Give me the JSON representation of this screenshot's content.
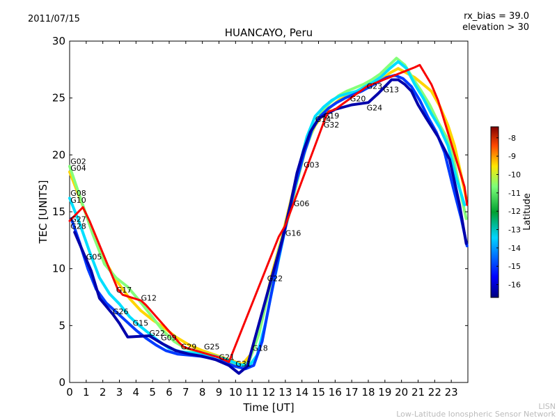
{
  "header": {
    "date": "2011/07/15",
    "rx_bias": "rx_bias = 39.0",
    "elevation": "elevation > 30"
  },
  "credit": {
    "line1": "LISN",
    "line2": "Low-Latitude Ionospheric Sensor Network"
  },
  "chart_data": {
    "type": "scatter",
    "title": "HUANCAYO, Peru",
    "xlabel": "Time [UT]",
    "ylabel": "TEC [UNITS]",
    "xlim": [
      0,
      24
    ],
    "ylim": [
      0,
      30
    ],
    "x_ticks": [
      0,
      1,
      2,
      3,
      4,
      5,
      6,
      7,
      8,
      9,
      10,
      11,
      12,
      13,
      14,
      15,
      16,
      17,
      18,
      19,
      20,
      21,
      22,
      23
    ],
    "y_ticks": [
      0,
      5,
      10,
      15,
      20,
      25,
      30
    ],
    "colorbar": {
      "label": "Latitude",
      "range": [
        -16.7,
        -7.4
      ],
      "ticks": [
        -8,
        -9,
        -10,
        -11,
        -12,
        -13,
        -14,
        -15,
        -16
      ]
    },
    "satellite_labels": [
      {
        "name": "G02",
        "t": 0.05,
        "tec": 19.2
      },
      {
        "name": "G04",
        "t": 0.05,
        "tec": 18.6
      },
      {
        "name": "G08",
        "t": 0.05,
        "tec": 16.4
      },
      {
        "name": "G10",
        "t": 0.05,
        "tec": 15.8
      },
      {
        "name": "G27",
        "t": 0.05,
        "tec": 14.1
      },
      {
        "name": "G28",
        "t": 0.05,
        "tec": 13.5
      },
      {
        "name": "G05",
        "t": 1.0,
        "tec": 10.8
      },
      {
        "name": "G17",
        "t": 2.8,
        "tec": 7.9
      },
      {
        "name": "G12",
        "t": 4.3,
        "tec": 7.2
      },
      {
        "name": "G26",
        "t": 2.6,
        "tec": 6.0
      },
      {
        "name": "G15",
        "t": 3.8,
        "tec": 5.0
      },
      {
        "name": "G22",
        "t": 4.8,
        "tec": 4.1
      },
      {
        "name": "G09",
        "t": 5.5,
        "tec": 3.7
      },
      {
        "name": "G29",
        "t": 6.7,
        "tec": 2.9
      },
      {
        "name": "G25",
        "t": 8.1,
        "tec": 2.9
      },
      {
        "name": "G21",
        "t": 9.0,
        "tec": 2.0
      },
      {
        "name": "G31",
        "t": 10.0,
        "tec": 1.4
      },
      {
        "name": "G18",
        "t": 11.0,
        "tec": 2.8
      },
      {
        "name": "G22",
        "t": 11.9,
        "tec": 8.9
      },
      {
        "name": "G16",
        "t": 13.0,
        "tec": 12.9
      },
      {
        "name": "G06",
        "t": 13.5,
        "tec": 15.5
      },
      {
        "name": "G03",
        "t": 14.1,
        "tec": 18.9
      },
      {
        "name": "G14",
        "t": 14.8,
        "tec": 22.9
      },
      {
        "name": "G19",
        "t": 15.3,
        "tec": 23.2
      },
      {
        "name": "G32",
        "t": 15.3,
        "tec": 22.4
      },
      {
        "name": "G20",
        "t": 16.9,
        "tec": 24.7
      },
      {
        "name": "G24",
        "t": 17.9,
        "tec": 23.9
      },
      {
        "name": "G23",
        "t": 17.9,
        "tec": 25.8
      },
      {
        "name": "G13",
        "t": 18.9,
        "tec": 25.5
      }
    ],
    "series": [
      {
        "lat": -10.5,
        "t": [
          0,
          0.8,
          1.5,
          2.2,
          2.9,
          3.6,
          4.3,
          5.0,
          5.7,
          6.4,
          7.2,
          8.0,
          8.8,
          9.6,
          10.4,
          11.0,
          11.6,
          12.2,
          12.8,
          13.3,
          13.8,
          14.3,
          14.8,
          15.3,
          15.8,
          16.3,
          16.8,
          17.3,
          17.8,
          18.3,
          18.8,
          19.3,
          19.8,
          20.3,
          20.8,
          21.3,
          21.8,
          22.3,
          22.8,
          23.2,
          23.6,
          23.9
        ],
        "tec": [
          18.5,
          15.5,
          12.8,
          10.5,
          8.8,
          7.4,
          6.3,
          5.5,
          4.8,
          4.0,
          3.3,
          2.8,
          2.4,
          2.0,
          1.6,
          2.6,
          5.8,
          9.6,
          12.8,
          15.8,
          18.8,
          21.0,
          22.6,
          23.6,
          24.3,
          24.9,
          25.2,
          25.6,
          25.9,
          26.2,
          26.6,
          27.2,
          27.6,
          27.2,
          26.8,
          26.2,
          25.6,
          24.3,
          22.6,
          20.8,
          18.2,
          16.2
        ]
      },
      {
        "lat": -12.0,
        "t": [
          0,
          0.7,
          1.4,
          2.1,
          2.8,
          3.5,
          4.2,
          4.9,
          5.6,
          6.3,
          7.0,
          7.8,
          8.6,
          9.4,
          10.2,
          10.8,
          11.4,
          12.0,
          12.6,
          13.2,
          13.7,
          14.2,
          14.7,
          15.2,
          15.7,
          16.2,
          16.7,
          17.2,
          17.7,
          18.2,
          18.7,
          19.2,
          19.7,
          20.2,
          20.7,
          21.2,
          21.7,
          22.2,
          22.7,
          23.1,
          23.5,
          23.9
        ],
        "tec": [
          19.0,
          16.0,
          13.0,
          10.4,
          9.2,
          8.4,
          7.2,
          5.9,
          4.6,
          3.6,
          3.0,
          2.7,
          2.4,
          2.0,
          1.4,
          1.8,
          4.2,
          8.0,
          11.6,
          14.6,
          17.6,
          20.4,
          22.4,
          23.8,
          24.6,
          25.2,
          25.6,
          25.9,
          26.2,
          26.6,
          27.1,
          27.8,
          28.5,
          27.9,
          26.7,
          25.6,
          24.4,
          22.9,
          21.6,
          19.9,
          17.1,
          14.4
        ]
      },
      {
        "lat": -13.5,
        "t": [
          0,
          0.6,
          1.2,
          1.8,
          2.4,
          3.0,
          3.6,
          4.2,
          4.8,
          5.4,
          6.0,
          6.7,
          7.4,
          8.1,
          8.8,
          9.5,
          10.2,
          10.8,
          11.3,
          11.8,
          12.3,
          12.8,
          13.3,
          13.8,
          14.3,
          14.8,
          15.3,
          15.8,
          16.3,
          16.8,
          17.3,
          17.8,
          18.3,
          18.8,
          19.3,
          19.8,
          20.3,
          20.8,
          21.3,
          21.8,
          22.3,
          22.8,
          23.3,
          23.8
        ],
        "tec": [
          16.2,
          14.0,
          11.5,
          9.2,
          7.8,
          6.9,
          5.8,
          5.0,
          4.3,
          3.6,
          3.0,
          2.7,
          2.6,
          2.5,
          2.3,
          2.0,
          1.6,
          1.4,
          2.4,
          5.2,
          8.8,
          12.2,
          15.6,
          18.8,
          21.6,
          23.4,
          24.2,
          24.8,
          25.2,
          25.4,
          25.6,
          26.0,
          26.4,
          26.9,
          27.6,
          28.2,
          27.6,
          26.2,
          25.0,
          23.6,
          22.4,
          20.8,
          18.0,
          15.6
        ]
      },
      {
        "lat": -15.0,
        "t": [
          0.1,
          0.6,
          1.1,
          1.6,
          2.2,
          2.8,
          3.4,
          4.0,
          4.6,
          5.2,
          5.8,
          6.5,
          7.2,
          7.9,
          8.6,
          9.3,
          10.0,
          10.6,
          11.1,
          11.6,
          12.1,
          12.6,
          13.1,
          13.6,
          14.1,
          14.6,
          15.1,
          15.6,
          16.1,
          16.6,
          17.1,
          17.6,
          18.1,
          18.6,
          19.1,
          19.6,
          20.1,
          20.6,
          21.1,
          21.6,
          22.1,
          22.6,
          23.1,
          23.6,
          23.95
        ],
        "tec": [
          14.4,
          12.3,
          10.0,
          8.2,
          7.0,
          6.2,
          5.4,
          4.6,
          3.9,
          3.3,
          2.8,
          2.5,
          2.4,
          2.3,
          2.1,
          1.8,
          1.4,
          1.2,
          1.5,
          3.6,
          7.4,
          11.0,
          14.2,
          17.3,
          20.0,
          22.2,
          23.4,
          24.1,
          24.6,
          25.0,
          25.3,
          25.6,
          26.0,
          26.4,
          26.8,
          27.0,
          26.7,
          26.0,
          24.8,
          23.3,
          22.0,
          20.2,
          17.2,
          14.4,
          12.0
        ]
      },
      {
        "lat": -16.3,
        "t": [
          0.3,
          0.8,
          1.3,
          1.8,
          2.6,
          3.0,
          3.5,
          4.8,
          5.6,
          6.4,
          7.2,
          8.0,
          8.8,
          9.6,
          10.2,
          10.7,
          12.8,
          13.3,
          13.7,
          14.1,
          14.5,
          15.0,
          16.0,
          17.0,
          18.0,
          18.6,
          19.0,
          19.4,
          19.8,
          20.2,
          20.6,
          21.0,
          21.5,
          22.2,
          22.9,
          23.5,
          23.9
        ],
        "tec": [
          13.2,
          11.5,
          9.8,
          7.4,
          6.0,
          5.2,
          4.0,
          4.1,
          3.4,
          2.8,
          2.5,
          2.3,
          2.0,
          1.5,
          0.8,
          1.4,
          12.5,
          15.6,
          18.4,
          20.4,
          22.0,
          23.2,
          24.0,
          24.4,
          24.6,
          25.4,
          26.0,
          26.6,
          26.6,
          26.2,
          25.6,
          24.4,
          23.2,
          21.6,
          19.6,
          15.6,
          12.2
        ]
      },
      {
        "lat": -8.5,
        "t": [
          0.0,
          0.4,
          0.8,
          1.2,
          2.9,
          3.2,
          4.3,
          4.6,
          6.6,
          6.9,
          9.0,
          9.6,
          12.6,
          12.8,
          13.0,
          15.4,
          15.6,
          16.0,
          17.9,
          18.4,
          20.8,
          21.1,
          21.8,
          22.2,
          23.8,
          23.95
        ],
        "tec": [
          14.2,
          14.8,
          15.4,
          14.2,
          8.2,
          7.7,
          7.2,
          6.8,
          3.5,
          3.1,
          2.2,
          1.8,
          12.8,
          13.3,
          13.8,
          23.2,
          23.8,
          24.0,
          26.0,
          26.3,
          27.7,
          27.9,
          26.2,
          24.8,
          17.2,
          15.6
        ]
      }
    ]
  }
}
